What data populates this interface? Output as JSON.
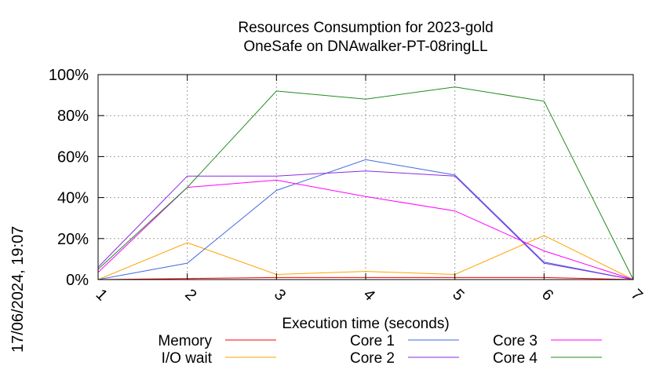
{
  "timestamp": "17/06/2024, 19:07",
  "chart_data": {
    "type": "line",
    "title": "Resources Consumption for 2023-gold",
    "subtitle": "OneSafe on DNAwalker-PT-08ringLL",
    "xlabel": "Execution time (seconds)",
    "ylabel": "",
    "x": [
      1,
      2,
      3,
      4,
      5,
      6,
      7
    ],
    "xlim": [
      1,
      7
    ],
    "ylim": [
      0,
      100
    ],
    "x_ticks": [
      "1",
      "2",
      "3",
      "4",
      "5",
      "6",
      "7"
    ],
    "y_ticks": [
      "0%",
      "20%",
      "40%",
      "60%",
      "80%",
      "100%"
    ],
    "y_tick_values": [
      0,
      20,
      40,
      60,
      80,
      100
    ],
    "grid": true,
    "legend_position": "bottom",
    "series": [
      {
        "name": "Memory",
        "color": "#ff0000",
        "values": [
          0,
          0.5,
          1,
          1,
          1,
          1,
          0
        ]
      },
      {
        "name": "I/O wait",
        "color": "#ffa500",
        "values": [
          0,
          18,
          2.5,
          4,
          2.5,
          21.5,
          0
        ]
      },
      {
        "name": "Core 1",
        "color": "#4169e1",
        "values": [
          0,
          8,
          43.5,
          58.5,
          51,
          8.5,
          0
        ]
      },
      {
        "name": "Core 2",
        "color": "#8a2be2",
        "values": [
          6,
          50.5,
          50.5,
          53,
          50.5,
          8,
          0
        ]
      },
      {
        "name": "Core 3",
        "color": "#ff00ff",
        "values": [
          3.5,
          45,
          48.5,
          40.5,
          33.5,
          14,
          0
        ]
      },
      {
        "name": "Core 4",
        "color": "#228b22",
        "values": [
          5,
          45,
          92,
          88,
          94,
          87,
          0
        ]
      }
    ]
  }
}
